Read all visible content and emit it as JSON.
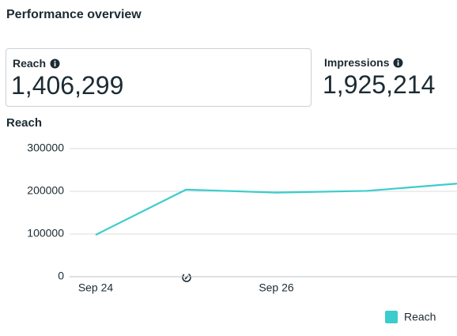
{
  "header": {
    "title": "Performance overview"
  },
  "cards": [
    {
      "label": "Reach",
      "value": "1,406,299"
    },
    {
      "label": "Impressions",
      "value": "1,925,214"
    }
  ],
  "chart_data": {
    "type": "line",
    "title": "Reach",
    "categories": [
      "Sep 24",
      null,
      "Sep 26",
      null,
      null
    ],
    "series": [
      {
        "name": "Reach",
        "color": "#3ccccc",
        "values": [
          98000,
          204000,
          197000,
          201000,
          218000
        ]
      }
    ],
    "ylim": [
      0,
      300000
    ],
    "yticks": [
      0,
      100000,
      200000,
      300000
    ],
    "grid": true,
    "legend": "bottom-right"
  }
}
